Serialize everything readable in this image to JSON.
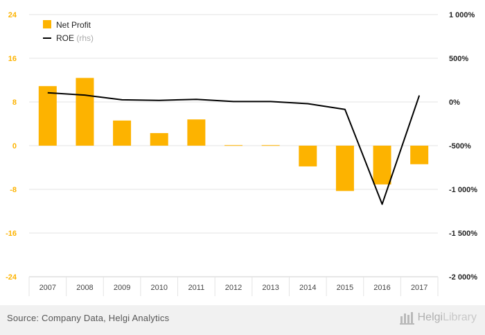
{
  "chart_data": {
    "type": "bar+line",
    "categories": [
      "2007",
      "2008",
      "2009",
      "2010",
      "2011",
      "2012",
      "2013",
      "2014",
      "2015",
      "2016",
      "2017"
    ],
    "series": [
      {
        "name": "Net Profit",
        "type": "bar",
        "axis": "left",
        "color": "#FDB300",
        "values": [
          10.9,
          12.4,
          4.6,
          2.3,
          4.8,
          0.1,
          0.1,
          -3.8,
          -8.3,
          -7.1,
          -3.4
        ]
      },
      {
        "name": "ROE",
        "name_suffix": "(rhs)",
        "type": "line",
        "axis": "right",
        "color": "#000000",
        "values": [
          105,
          78,
          25,
          18,
          30,
          5,
          5,
          -20,
          -85,
          -1170,
          75
        ]
      }
    ],
    "yleft": {
      "ylim": [
        -24,
        24
      ],
      "ticks": [
        "24",
        "16",
        "8",
        "0",
        "-8",
        "-16",
        "-24"
      ],
      "tick_values": [
        24,
        16,
        8,
        0,
        -8,
        -16,
        -24
      ],
      "color": "#FDB300"
    },
    "yright": {
      "ylim": [
        -2000,
        1000
      ],
      "ticks": [
        "1 000%",
        "500%",
        "0%",
        "-500%",
        "-1 000%",
        "-1 500%",
        "-2 000%"
      ],
      "tick_values": [
        1000,
        500,
        0,
        -500,
        -1000,
        -1500,
        -2000
      ]
    },
    "grid": true,
    "legend": "top-left"
  },
  "footer": {
    "source": "Source: Company Data, Helgi Analytics",
    "brand_part1": "Helgi",
    "brand_part2": "Library",
    "brand_icon": "helgi-library-logo-icon"
  }
}
